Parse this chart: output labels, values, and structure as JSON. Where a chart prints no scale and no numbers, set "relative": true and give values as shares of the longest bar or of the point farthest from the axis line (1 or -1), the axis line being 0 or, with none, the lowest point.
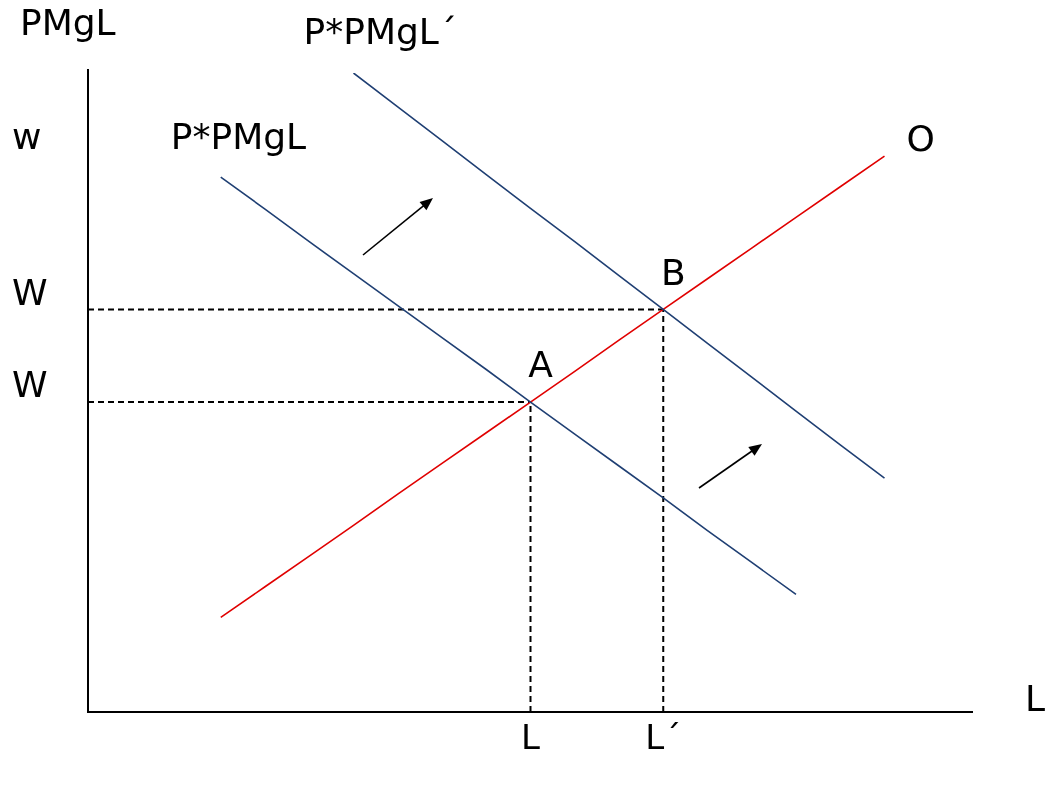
{
  "chart_data": {
    "type": "line",
    "relative": true,
    "ylabel": "PMgL",
    "xlabel": "L",
    "annotations": [
      "w",
      "W",
      "W",
      {
        "text": "A",
        "x": "L",
        "y": 0.485
      },
      {
        "text": "B",
        "x": "L´",
        "y": 0.63
      }
    ],
    "categories": [
      null,
      null,
      null,
      null,
      null,
      null,
      null,
      null,
      null,
      null,
      "L",
      null,
      null,
      "L´",
      null,
      null,
      null,
      null,
      null,
      null,
      null
    ],
    "grid": false,
    "legend": false,
    "marker": "none",
    "series": [
      {
        "name": "P*PMgL",
        "color": "#1f3f73",
        "values": [
          null,
          null,
          null,
          0.837,
          0.787,
          0.736,
          0.686,
          0.636,
          0.586,
          0.536,
          0.485,
          0.435,
          0.385,
          0.335,
          0.284,
          0.234,
          0.184,
          null,
          null,
          null,
          null
        ]
      },
      {
        "name": "P*PMgL´",
        "color": "#1f3f73",
        "values": [
          null,
          null,
          null,
          null,
          null,
          null,
          1.0,
          0.947,
          0.894,
          0.841,
          0.788,
          0.736,
          0.683,
          0.63,
          0.577,
          0.524,
          0.471,
          0.418,
          0.366,
          null,
          null
        ]
      },
      {
        "name": "O",
        "color": "#e00000",
        "values": [
          null,
          null,
          null,
          0.148,
          0.196,
          0.244,
          0.292,
          0.341,
          0.389,
          0.437,
          0.485,
          0.533,
          0.582,
          0.63,
          0.678,
          0.726,
          0.774,
          0.822,
          0.87,
          null,
          null
        ]
      },
      {
        "color": "#000000",
        "line_style": "dashed",
        "values": [
          0.485,
          0.485,
          0.485,
          0.485,
          0.485,
          0.485,
          0.485,
          0.485,
          0.485,
          0.485,
          0.485,
          null,
          null,
          null,
          null,
          null,
          null,
          null,
          null,
          null,
          null
        ]
      },
      {
        "color": "#000000",
        "line_style": "dashed",
        "values": [
          0.63,
          0.63,
          0.63,
          0.63,
          0.63,
          0.63,
          0.63,
          0.63,
          0.63,
          0.63,
          0.63,
          0.63,
          0.63,
          0.63,
          null,
          null,
          null,
          null,
          null,
          null,
          null
        ]
      },
      {
        "color": "#000000",
        "line_style": "dashed",
        "x": [
          "L",
          "L"
        ],
        "values": [
          0,
          0.485
        ]
      },
      {
        "color": "#000000",
        "line_style": "dashed",
        "x": [
          "L´",
          "L´"
        ],
        "values": [
          0,
          0.63
        ]
      }
    ]
  }
}
